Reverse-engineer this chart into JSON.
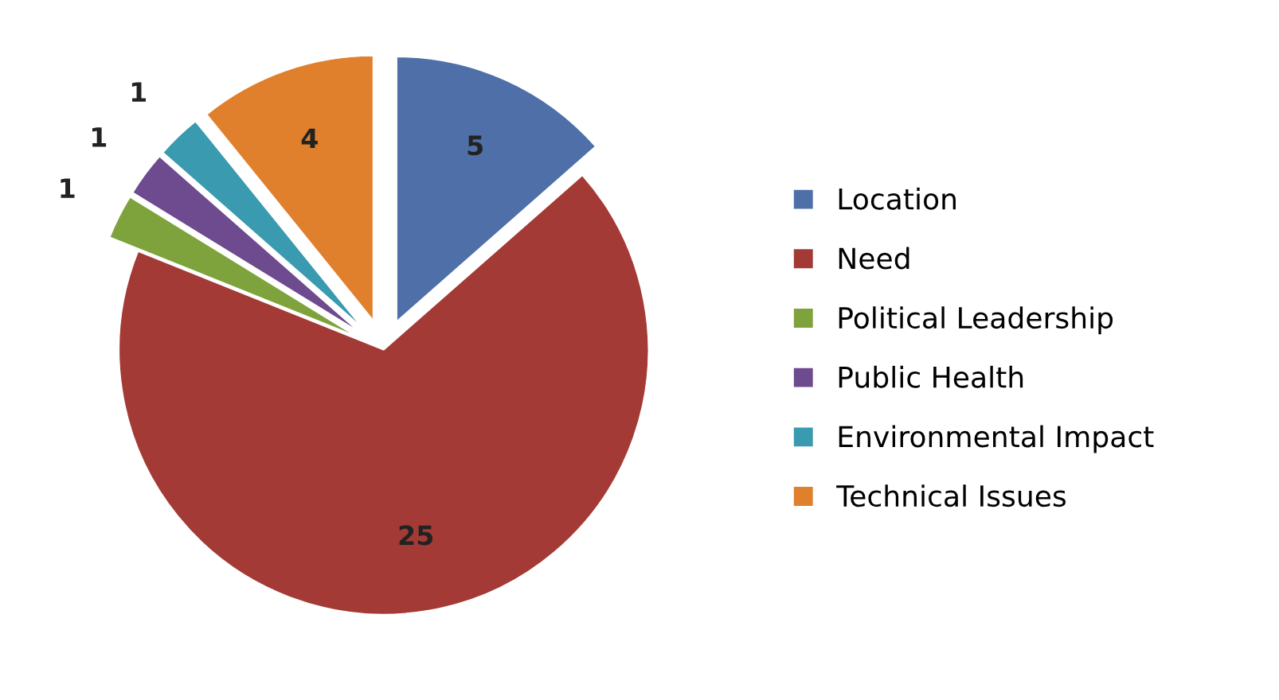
{
  "chart_data": {
    "type": "pie",
    "categories": [
      "Location",
      "Need",
      "Political Leadership",
      "Public Health",
      "Environmental Impact",
      "Technical Issues"
    ],
    "values": [
      5,
      25,
      1,
      1,
      1,
      4
    ],
    "colors": [
      "#4f6fa8",
      "#a33a36",
      "#7fa33c",
      "#6e4a8e",
      "#3a9ab0",
      "#e0802c"
    ],
    "data_labels": true,
    "legend": "right"
  }
}
